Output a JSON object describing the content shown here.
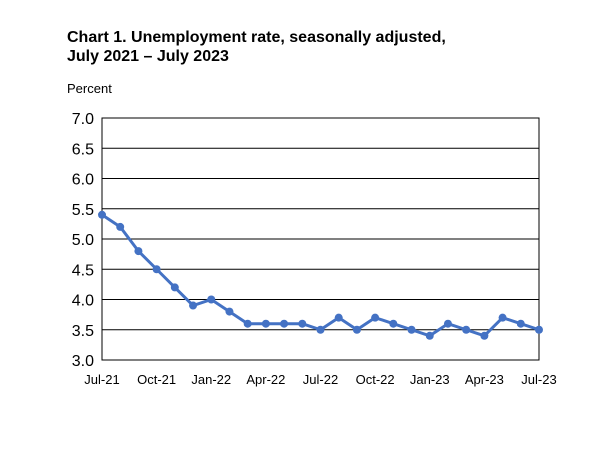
{
  "chart_data": {
    "type": "line",
    "title_line1": "Chart 1. Unemployment rate, seasonally adjusted,",
    "title_line2": "July 2021 – July 2023",
    "ylabel": "Percent",
    "xlabel": "",
    "ylim": [
      3.0,
      7.0
    ],
    "y_ticks": [
      "7.0",
      "6.5",
      "6.0",
      "5.5",
      "5.0",
      "4.5",
      "4.0",
      "3.5",
      "3.0"
    ],
    "x_tick_labels": [
      "Jul-21",
      "Oct-21",
      "Jan-22",
      "Apr-22",
      "Jul-22",
      "Oct-22",
      "Jan-23",
      "Apr-23",
      "Jul-23"
    ],
    "x_tick_indices": [
      0,
      3,
      6,
      9,
      12,
      15,
      18,
      21,
      24
    ],
    "grid": true,
    "legend": "none",
    "color": "#4472C4",
    "x": [
      "Jul-21",
      "Aug-21",
      "Sep-21",
      "Oct-21",
      "Nov-21",
      "Dec-21",
      "Jan-22",
      "Feb-22",
      "Mar-22",
      "Apr-22",
      "May-22",
      "Jun-22",
      "Jul-22",
      "Aug-22",
      "Sep-22",
      "Oct-22",
      "Nov-22",
      "Dec-22",
      "Jan-23",
      "Feb-23",
      "Mar-23",
      "Apr-23",
      "May-23",
      "Jun-23",
      "Jul-23"
    ],
    "series": [
      {
        "values": [
          5.4,
          5.2,
          4.8,
          4.5,
          4.2,
          3.9,
          4.0,
          3.8,
          3.6,
          3.6,
          3.6,
          3.6,
          3.5,
          3.7,
          3.5,
          3.7,
          3.6,
          3.5,
          3.4,
          3.6,
          3.5,
          3.4,
          3.7,
          3.6,
          3.5
        ]
      }
    ]
  }
}
